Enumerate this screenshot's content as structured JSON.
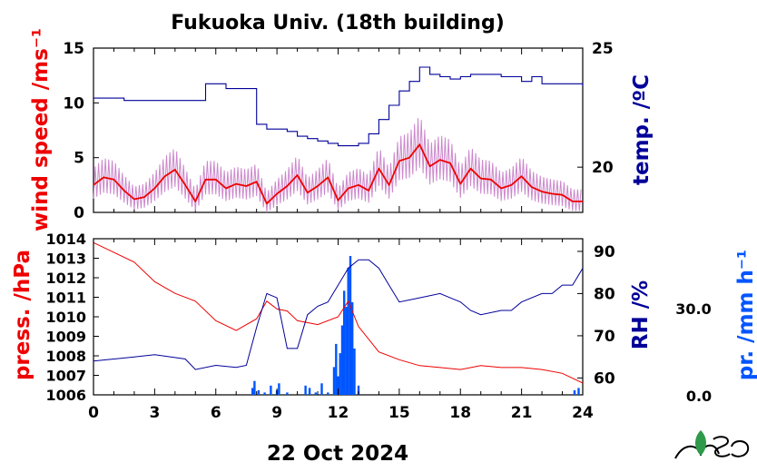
{
  "title": "Fukuoka Univ. (18th building)",
  "date_label": "22 Oct 2024",
  "colors": {
    "wind": "#ee0000",
    "wind_raw": "#cc88cc",
    "temp": "#000099",
    "pressure": "#ee0000",
    "rh": "#000099",
    "precip": "#0055ff",
    "axis": "#000000"
  },
  "chart_data": [
    {
      "type": "line",
      "title": "",
      "xlabel": "",
      "x_ticks": [
        0,
        3,
        6,
        9,
        12,
        15,
        18,
        21,
        24
      ],
      "xlim": [
        0,
        24
      ],
      "left_axis": {
        "label": "wind speed /ms⁻¹",
        "ylim": [
          0,
          15
        ],
        "ticks": [
          0,
          5,
          10,
          15
        ]
      },
      "right_axis": {
        "label": "temp. /ºC",
        "ylim": [
          18.1,
          25
        ],
        "ticks": [
          20,
          25
        ]
      },
      "series": [
        {
          "name": "wind speed",
          "axis": "left",
          "x": [
            0,
            0.5,
            1,
            1.5,
            2,
            2.5,
            3,
            3.5,
            4,
            4.5,
            5,
            5.5,
            6,
            6.5,
            7,
            7.5,
            8,
            8.5,
            9,
            9.5,
            10,
            10.5,
            11,
            11.5,
            12,
            12.5,
            13,
            13.5,
            14,
            14.5,
            15,
            15.5,
            16,
            16.5,
            17,
            17.5,
            18,
            18.5,
            19,
            19.5,
            20,
            20.5,
            21,
            21.5,
            22,
            22.5,
            23,
            23.5,
            24
          ],
          "values": [
            2.5,
            3.2,
            3.0,
            2.0,
            1.2,
            1.4,
            2.2,
            3.3,
            3.9,
            2.5,
            1.0,
            3.0,
            3.0,
            2.2,
            2.6,
            2.4,
            2.8,
            0.8,
            1.7,
            2.4,
            3.4,
            1.8,
            2.4,
            3.2,
            1.1,
            2.2,
            2.5,
            2.0,
            4.0,
            2.5,
            4.7,
            5.0,
            6.2,
            4.2,
            4.8,
            4.5,
            2.6,
            4.0,
            3.1,
            3.0,
            2.2,
            2.5,
            3.3,
            2.3,
            1.9,
            1.7,
            1.6,
            1.0,
            1.0
          ]
        },
        {
          "name": "temperature",
          "axis": "right",
          "x": [
            0,
            1.5,
            2.5,
            4,
            5.5,
            6.5,
            7.5,
            8,
            8.5,
            9,
            9.5,
            10,
            10.5,
            11,
            11.5,
            12,
            12.5,
            13,
            13.5,
            14,
            14.5,
            15,
            15.5,
            16,
            16.5,
            17,
            17.5,
            18,
            18.5,
            19,
            20,
            21,
            21.5,
            22,
            23,
            24
          ],
          "values": [
            22.9,
            22.8,
            22.8,
            22.8,
            23.5,
            23.3,
            23.3,
            21.8,
            21.6,
            21.6,
            21.5,
            21.3,
            21.2,
            21.1,
            21.0,
            20.9,
            20.9,
            21.0,
            21.4,
            22.0,
            22.6,
            23.2,
            23.6,
            24.2,
            23.9,
            23.8,
            23.7,
            23.8,
            23.9,
            23.9,
            23.8,
            23.6,
            23.8,
            23.5,
            23.5,
            23.4
          ]
        }
      ]
    },
    {
      "type": "line",
      "title": "",
      "xlabel": "",
      "x_ticks": [
        0,
        3,
        6,
        9,
        12,
        15,
        18,
        21,
        24
      ],
      "xlim": [
        0,
        24
      ],
      "left_axis": {
        "label": "press. /hPa",
        "ylim": [
          1006,
          1014
        ],
        "ticks": [
          1006,
          1007,
          1008,
          1009,
          1010,
          1011,
          1012,
          1013,
          1014
        ]
      },
      "right_axis": {
        "label": "RH /%",
        "ylim": [
          56,
          93
        ],
        "ticks": [
          60,
          70,
          80,
          90
        ]
      },
      "precip_axis": {
        "label": "pr. /mm h⁻¹",
        "ticks": [
          "30.0",
          "0.0"
        ],
        "ylim": [
          0,
          60
        ]
      },
      "series": [
        {
          "name": "pressure",
          "axis": "left",
          "x": [
            0,
            1,
            2,
            3,
            4,
            5,
            6,
            7,
            8,
            8.5,
            9,
            9.5,
            10,
            11,
            12,
            12.5,
            13,
            14,
            15,
            16,
            17,
            18,
            19,
            20,
            21,
            22,
            23,
            24
          ],
          "values": [
            1013.8,
            1013.3,
            1012.8,
            1011.8,
            1011.2,
            1010.8,
            1009.8,
            1009.3,
            1009.9,
            1010.8,
            1010.4,
            1010.3,
            1009.8,
            1009.6,
            1010.0,
            1010.8,
            1009.5,
            1008.2,
            1007.8,
            1007.5,
            1007.4,
            1007.3,
            1007.5,
            1007.4,
            1007.4,
            1007.3,
            1007.1,
            1006.6
          ]
        },
        {
          "name": "relative humidity",
          "axis": "right",
          "x": [
            0,
            1,
            2,
            3,
            3.8,
            4.5,
            5,
            6,
            7,
            7.5,
            8,
            8.5,
            9,
            9.5,
            10,
            10.5,
            11,
            11.5,
            12,
            12.5,
            13,
            13.5,
            14,
            14.5,
            15,
            16,
            17,
            17.5,
            18,
            18.5,
            19,
            20,
            20.5,
            21,
            22,
            22.5,
            23,
            23.5,
            24
          ],
          "values": [
            64,
            64.5,
            65,
            65.5,
            65,
            64.5,
            62,
            63,
            62.5,
            63,
            72,
            80,
            79,
            67,
            67,
            75,
            77,
            78,
            82,
            86,
            88,
            88,
            86,
            82,
            78,
            79,
            80,
            79,
            78,
            76,
            75,
            76,
            76,
            78,
            80,
            80,
            82,
            82,
            86
          ]
        },
        {
          "name": "precipitation",
          "axis": "precip",
          "type": "bar",
          "x": [
            7.8,
            7.9,
            8.1,
            8.4,
            8.7,
            9.0,
            9.1,
            9.5,
            10.4,
            10.6,
            10.9,
            11.2,
            11.5,
            11.8,
            11.9,
            12.0,
            12.1,
            12.2,
            12.3,
            12.4,
            12.5,
            12.6,
            12.7,
            12.8,
            13.0,
            23.6,
            23.8
          ],
          "values": [
            3,
            6,
            2,
            1,
            4,
            2,
            5,
            1,
            4,
            3,
            1,
            5,
            1,
            12,
            22,
            8,
            18,
            30,
            45,
            38,
            55,
            60,
            40,
            20,
            4,
            2,
            3
          ]
        }
      ]
    }
  ]
}
